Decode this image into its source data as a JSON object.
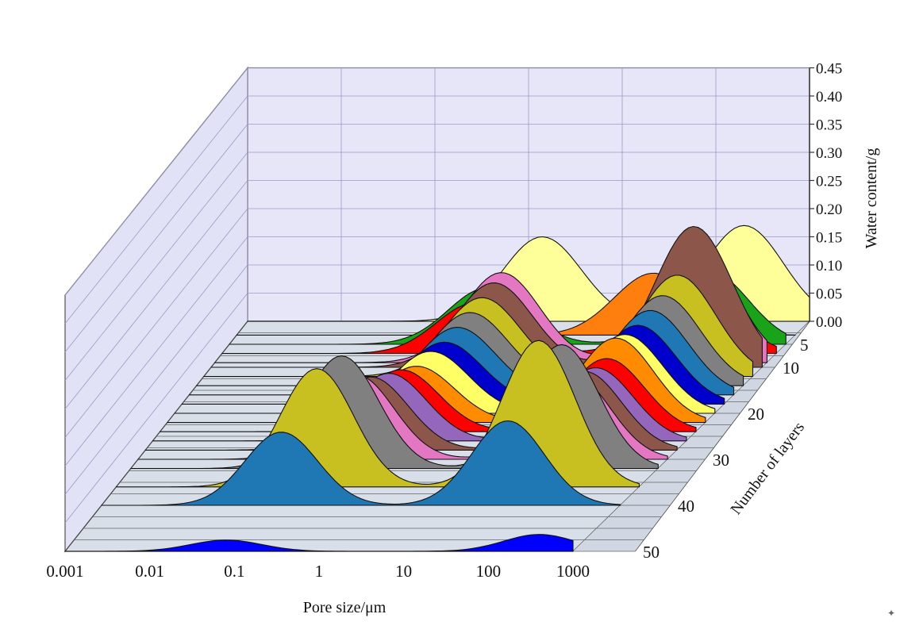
{
  "chart_data": {
    "type": "area",
    "subtype": "3d-waterfall",
    "title": "",
    "xlabel": "Pore size/μm",
    "ylabel": "Water content/g",
    "zlabel": "Number of layers",
    "x_scale": "log",
    "xlim": [
      0.001,
      1000
    ],
    "ylim": [
      0,
      0.45
    ],
    "zlim": [
      0,
      50
    ],
    "x_ticks": [
      "0.001",
      "0.01",
      "0.1",
      "1",
      "10",
      "100",
      "1000"
    ],
    "y_ticks": [
      "0.00",
      "0.05",
      "0.10",
      "0.15",
      "0.20",
      "0.25",
      "0.30",
      "0.35",
      "0.40",
      "0.45"
    ],
    "z_ticks": [
      "5",
      "10",
      "20",
      "30",
      "40",
      "50"
    ],
    "grid": true,
    "legend": "none",
    "series": [
      {
        "layer": 0,
        "color": "#ffff99",
        "peaks": [
          {
            "x": 1.4,
            "y": 0.15
          },
          {
            "x": 200,
            "y": 0.17
          }
        ]
      },
      {
        "layer": 3,
        "color": "#ff7f0e",
        "peaks": [
          {
            "x": 30,
            "y": 0.11
          }
        ]
      },
      {
        "layer": 5,
        "color": "#19a319",
        "peaks": [
          {
            "x": 0.6,
            "y": 0.1
          },
          {
            "x": 150,
            "y": 0.13
          }
        ]
      },
      {
        "layer": 7,
        "color": "#ff0000",
        "peaks": [
          {
            "x": 0.55,
            "y": 0.09
          },
          {
            "x": 120,
            "y": 0.14
          }
        ]
      },
      {
        "layer": 9,
        "color": "#e377c2",
        "peaks": [
          {
            "x": 1.3,
            "y": 0.16
          },
          {
            "x": 170,
            "y": 0.21
          }
        ]
      },
      {
        "layer": 10,
        "color": "#8c564b",
        "peaks": [
          {
            "x": 1.2,
            "y": 0.15
          },
          {
            "x": 180,
            "y": 0.25
          }
        ]
      },
      {
        "layer": 12,
        "color": "#c8c020",
        "peaks": [
          {
            "x": 1.1,
            "y": 0.14
          },
          {
            "x": 150,
            "y": 0.18
          }
        ]
      },
      {
        "layer": 14,
        "color": "#808080",
        "peaks": [
          {
            "x": 1.0,
            "y": 0.13
          },
          {
            "x": 130,
            "y": 0.16
          }
        ]
      },
      {
        "layer": 16,
        "color": "#1f77b4",
        "peaks": [
          {
            "x": 0.9,
            "y": 0.12
          },
          {
            "x": 120,
            "y": 0.15
          }
        ]
      },
      {
        "layer": 18,
        "color": "#0000cc",
        "peaks": [
          {
            "x": 0.8,
            "y": 0.11
          },
          {
            "x": 110,
            "y": 0.14
          }
        ]
      },
      {
        "layer": 20,
        "color": "#ffff66",
        "peaks": [
          {
            "x": 0.7,
            "y": 0.11
          },
          {
            "x": 100,
            "y": 0.14
          }
        ]
      },
      {
        "layer": 22,
        "color": "#ff8c00",
        "peaks": [
          {
            "x": 0.6,
            "y": 0.1
          },
          {
            "x": 100,
            "y": 0.15
          }
        ]
      },
      {
        "layer": 24,
        "color": "#ff0000",
        "peaks": [
          {
            "x": 0.5,
            "y": 0.11
          },
          {
            "x": 100,
            "y": 0.13
          }
        ]
      },
      {
        "layer": 26,
        "color": "#9467bd",
        "peaks": [
          {
            "x": 0.45,
            "y": 0.12
          },
          {
            "x": 95,
            "y": 0.13
          }
        ]
      },
      {
        "layer": 28,
        "color": "#8c564b",
        "peaks": [
          {
            "x": 0.35,
            "y": 0.13
          },
          {
            "x": 90,
            "y": 0.14
          }
        ]
      },
      {
        "layer": 30,
        "color": "#e377c2",
        "peaks": [
          {
            "x": 0.3,
            "y": 0.15
          },
          {
            "x": 85,
            "y": 0.15
          }
        ]
      },
      {
        "layer": 32,
        "color": "#808080",
        "peaks": [
          {
            "x": 0.25,
            "y": 0.2
          },
          {
            "x": 80,
            "y": 0.22
          }
        ]
      },
      {
        "layer": 36,
        "color": "#c8c020",
        "peaks": [
          {
            "x": 0.2,
            "y": 0.21
          },
          {
            "x": 70,
            "y": 0.26
          }
        ]
      },
      {
        "layer": 40,
        "color": "#1f77b4",
        "peaks": [
          {
            "x": 0.12,
            "y": 0.13
          },
          {
            "x": 50,
            "y": 0.15
          }
        ]
      },
      {
        "layer": 50,
        "color": "#0000ff",
        "peaks": [
          {
            "x": 0.08,
            "y": 0.02
          },
          {
            "x": 400,
            "y": 0.03
          }
        ]
      }
    ]
  }
}
